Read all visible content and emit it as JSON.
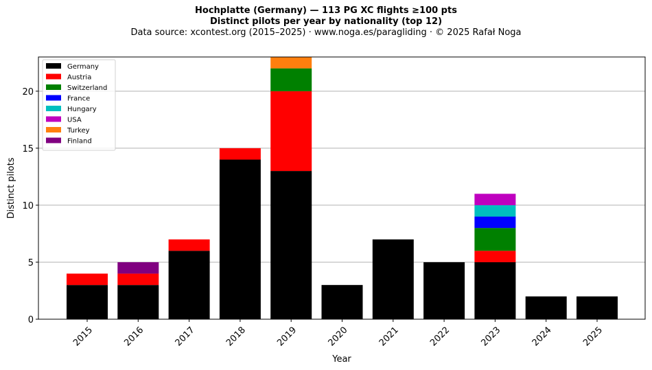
{
  "header": {
    "title_line1": "Hochplatte (Germany)  —  113 PG XC flights ≥100 pts",
    "title_line2": "Distinct pilots per year by nationality (top 12)",
    "subtitle": "Data source: xcontest.org (2015–2025)  ·  www.noga.es/paragliding  ·  © 2025 Rafał Noga"
  },
  "chart_data": {
    "type": "bar",
    "stacked": true,
    "categories": [
      "2015",
      "2016",
      "2017",
      "2018",
      "2019",
      "2020",
      "2021",
      "2022",
      "2023",
      "2024",
      "2025"
    ],
    "series": [
      {
        "name": "Germany",
        "color": "#000000",
        "values": [
          3,
          3,
          6,
          14,
          13,
          3,
          7,
          5,
          5,
          2,
          2
        ]
      },
      {
        "name": "Austria",
        "color": "#ff0000",
        "values": [
          1,
          1,
          1,
          1,
          7,
          0,
          0,
          0,
          1,
          0,
          0
        ]
      },
      {
        "name": "Switzerland",
        "color": "#008000",
        "values": [
          0,
          0,
          0,
          0,
          2,
          0,
          0,
          0,
          2,
          0,
          0
        ]
      },
      {
        "name": "France",
        "color": "#0000ff",
        "values": [
          0,
          0,
          0,
          0,
          0,
          0,
          0,
          0,
          1,
          0,
          0
        ]
      },
      {
        "name": "Hungary",
        "color": "#00bfbf",
        "values": [
          0,
          0,
          0,
          0,
          0,
          0,
          0,
          0,
          1,
          0,
          0
        ]
      },
      {
        "name": "USA",
        "color": "#bf00bf",
        "values": [
          0,
          0,
          0,
          0,
          0,
          0,
          0,
          0,
          1,
          0,
          0
        ]
      },
      {
        "name": "Turkey",
        "color": "#ff7f0e",
        "values": [
          0,
          0,
          0,
          0,
          1,
          0,
          0,
          0,
          0,
          0,
          0
        ]
      },
      {
        "name": "Finland",
        "color": "#800080",
        "values": [
          0,
          1,
          0,
          0,
          0,
          0,
          0,
          0,
          0,
          0,
          0
        ]
      }
    ],
    "xlabel": "Year",
    "ylabel": "Distinct pilots",
    "ylim": [
      0,
      23
    ],
    "yticks": [
      0,
      5,
      10,
      15,
      20
    ],
    "grid": "horizontal",
    "legend_position": "top-left"
  }
}
